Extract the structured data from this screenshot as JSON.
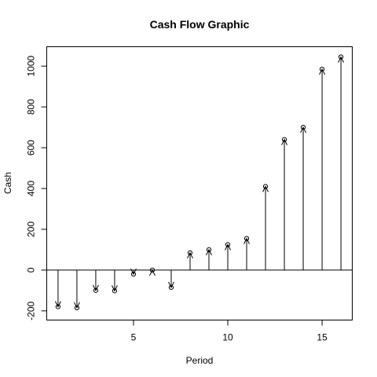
{
  "chart_data": {
    "type": "stem",
    "title": "Cash Flow Graphic",
    "xlabel": "Period",
    "ylabel": "Cash",
    "xlim": [
      0.4,
      16.6
    ],
    "ylim": [
      -245,
      1095
    ],
    "xticks": [
      5,
      10,
      15
    ],
    "yticks": [
      -200,
      0,
      200,
      400,
      600,
      800,
      1000
    ],
    "baseline": 0,
    "x": [
      1,
      2,
      3,
      4,
      5,
      6,
      7,
      8,
      9,
      10,
      11,
      12,
      13,
      14,
      15,
      16
    ],
    "values": [
      -180,
      -185,
      -100,
      -102,
      -20,
      0,
      -85,
      85,
      100,
      125,
      155,
      410,
      640,
      700,
      985,
      1045
    ],
    "grid": false,
    "legend": "none"
  }
}
